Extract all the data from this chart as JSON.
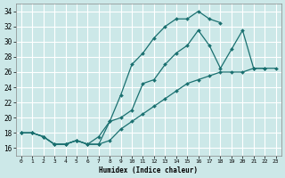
{
  "xlabel": "Humidex (Indice chaleur)",
  "xlim": [
    -0.5,
    23.5
  ],
  "ylim": [
    15.0,
    35.0
  ],
  "xticks": [
    0,
    1,
    2,
    3,
    4,
    5,
    6,
    7,
    8,
    9,
    10,
    11,
    12,
    13,
    14,
    15,
    16,
    17,
    18,
    19,
    20,
    21,
    22,
    23
  ],
  "yticks": [
    16,
    18,
    20,
    22,
    24,
    26,
    28,
    30,
    32,
    34
  ],
  "bg_color": "#cce8e8",
  "grid_color": "#ffffff",
  "line_color": "#1a7070",
  "line1_x": [
    0,
    1,
    2,
    3,
    4,
    5,
    6,
    7,
    8,
    9,
    10,
    11,
    12,
    13,
    14,
    15,
    16,
    17,
    18
  ],
  "line1_y": [
    18,
    18,
    17.5,
    16.5,
    16.5,
    17.0,
    16.5,
    16.5,
    19.5,
    23.0,
    27.0,
    28.5,
    30.5,
    32.0,
    33.0,
    33.0,
    34.0,
    33.0,
    32.5
  ],
  "line2_x": [
    0,
    1,
    2,
    3,
    4,
    5,
    6,
    7,
    8,
    9,
    10,
    11,
    12,
    13,
    14,
    15,
    16,
    17,
    18,
    19,
    20,
    21,
    22
  ],
  "line2_y": [
    18,
    18,
    17.5,
    16.5,
    16.5,
    17.0,
    16.5,
    17.5,
    19.5,
    20.0,
    21.0,
    24.5,
    25.0,
    27.0,
    28.5,
    29.5,
    31.5,
    29.5,
    26.5,
    29.0,
    31.5,
    26.5,
    26.5
  ],
  "line3_x": [
    0,
    1,
    2,
    3,
    4,
    5,
    6,
    7,
    8,
    9,
    10,
    11,
    12,
    13,
    14,
    15,
    16,
    17,
    18,
    19,
    20,
    21,
    22,
    23
  ],
  "line3_y": [
    18,
    18,
    17.5,
    16.5,
    16.5,
    17.0,
    16.5,
    16.5,
    17.0,
    18.5,
    19.5,
    20.5,
    21.5,
    22.5,
    23.5,
    24.5,
    25.0,
    25.5,
    26.0,
    26.0,
    26.0,
    26.5,
    26.5,
    26.5
  ]
}
